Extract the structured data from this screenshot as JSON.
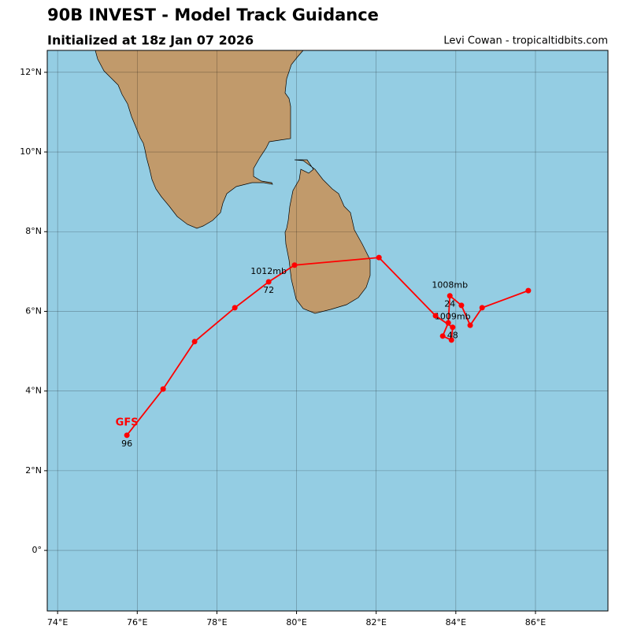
{
  "header": {
    "title": "90B INVEST - Model Track Guidance",
    "subtitle": "Initialized at 18z Jan 07 2026",
    "credit": "Levi Cowan - tropicaltidbits.com"
  },
  "map": {
    "xlim": [
      73.74,
      87.82
    ],
    "ylim": [
      -1.52,
      12.55
    ],
    "xticks": [
      {
        "value": 74,
        "label": "74°E"
      },
      {
        "value": 76,
        "label": "76°E"
      },
      {
        "value": 78,
        "label": "78°E"
      },
      {
        "value": 80,
        "label": "80°E"
      },
      {
        "value": 82,
        "label": "82°E"
      },
      {
        "value": 84,
        "label": "84°E"
      },
      {
        "value": 86,
        "label": "86°E"
      }
    ],
    "yticks": [
      {
        "value": 0,
        "label": "0°"
      },
      {
        "value": 2,
        "label": "2°N"
      },
      {
        "value": 4,
        "label": "4°N"
      },
      {
        "value": 6,
        "label": "6°N"
      },
      {
        "value": 8,
        "label": "8°N"
      },
      {
        "value": 10,
        "label": "10°N"
      },
      {
        "value": 12,
        "label": "12°N"
      }
    ],
    "track": {
      "model": "GFS",
      "color": "#ff0000",
      "points": [
        {
          "lon": 85.82,
          "lat": 6.52
        },
        {
          "lon": 84.66,
          "lat": 6.09
        },
        {
          "lon": 84.36,
          "lat": 5.65
        },
        {
          "lon": 84.14,
          "lat": 6.15
        },
        {
          "lon": 83.85,
          "lat": 6.39,
          "pressure": "1008mb",
          "hour": "24"
        },
        {
          "lon": 83.81,
          "lat": 5.71
        },
        {
          "lon": 83.67,
          "lat": 5.38
        },
        {
          "lon": 83.89,
          "lat": 5.28
        },
        {
          "lon": 83.92,
          "lat": 5.6,
          "pressure": "1009mb",
          "hour": "48"
        },
        {
          "lon": 83.49,
          "lat": 5.89
        },
        {
          "lon": 82.07,
          "lat": 7.35
        },
        {
          "lon": 79.95,
          "lat": 7.16
        },
        {
          "lon": 79.3,
          "lat": 6.74,
          "pressure": "1012mb",
          "hour": "72"
        },
        {
          "lon": 78.45,
          "lat": 6.09
        },
        {
          "lon": 77.44,
          "lat": 5.24
        },
        {
          "lon": 76.65,
          "lat": 4.05
        },
        {
          "lon": 75.74,
          "lat": 2.89,
          "hour": "96"
        }
      ]
    }
  }
}
